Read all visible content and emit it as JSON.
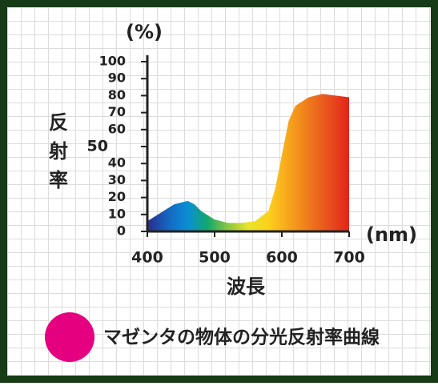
{
  "chart_data": {
    "type": "area",
    "y_unit": "(%)",
    "y_label": "反射率",
    "x_unit": "(nm)",
    "x_label": "波長",
    "x": [
      400,
      420,
      440,
      460,
      470,
      480,
      500,
      520,
      540,
      560,
      580,
      590,
      600,
      610,
      620,
      640,
      660,
      680,
      700
    ],
    "series": [
      {
        "name": "マゼンタの物体の分光反射率曲線",
        "color": "#e4007f",
        "values": [
          6,
          11,
          16,
          18,
          16,
          12,
          7,
          5,
          5,
          6,
          12,
          25,
          45,
          65,
          74,
          79,
          81,
          80,
          79
        ]
      }
    ],
    "fill_colors": [
      "#2b2a8a",
      "#1565c0",
      "#0a8fd6",
      "#14a86b",
      "#8cc63f",
      "#e8e52a",
      "#fbd11b",
      "#f7a51c",
      "#ee7a1b",
      "#e8501e",
      "#e2231a"
    ],
    "xlim": [
      400,
      700
    ],
    "xticks": [
      400,
      500,
      600,
      700
    ],
    "ylim": [
      0,
      100
    ],
    "yticks": [
      0,
      10,
      20,
      30,
      40,
      50,
      60,
      70,
      80,
      90,
      100
    ]
  }
}
